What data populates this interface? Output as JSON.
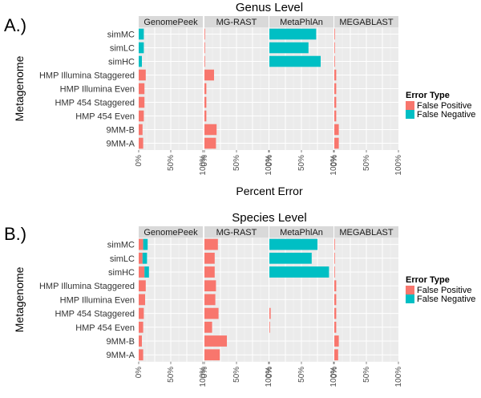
{
  "colors": {
    "false_positive": "#F8766D",
    "false_negative": "#00BFC4",
    "panel_bg": "#EBEBEB",
    "strip_bg": "#D9D9D9",
    "grid": "#FFFFFF"
  },
  "chart_data": [
    {
      "type": "bar",
      "panel_label": "A.)",
      "title": "Genus Level",
      "xlabel": "Percent Error",
      "ylabel": "Metagenome",
      "legend_title": "Error Type",
      "legend_position": "right",
      "xlim": [
        0,
        100
      ],
      "xticks": [
        "0%",
        "50%",
        "100%"
      ],
      "stacked": true,
      "facets": [
        "GenomePeek",
        "MG-RAST",
        "MetaPhlAn",
        "MEGABLAST"
      ],
      "categories": [
        "simMC",
        "simLC",
        "simHC",
        "HMP Illumina Staggered",
        "HMP Illumina Even",
        "HMP 454 Staggered",
        "HMP 454 Even",
        "9MM-B",
        "9MM-A"
      ],
      "series": [
        {
          "name": "False Positive",
          "values": {
            "GenomePeek": [
              0,
              0,
              0,
              11,
              9,
              9,
              8,
              6,
              7
            ],
            "MG-RAST": [
              1,
              1,
              1,
              15,
              3,
              3,
              3,
              19,
              18
            ],
            "MetaPhlAn": [
              0,
              0,
              0,
              0,
              0,
              0,
              0,
              0,
              0
            ],
            "MEGABLAST": [
              1,
              1,
              1,
              3,
              3,
              3,
              3,
              7,
              7
            ]
          }
        },
        {
          "name": "False Negative",
          "values": {
            "GenomePeek": [
              8,
              8,
              5,
              0,
              0,
              0,
              0,
              0,
              0
            ],
            "MG-RAST": [
              0,
              0,
              0,
              0,
              0,
              0,
              0,
              0,
              0
            ],
            "MetaPhlAn": [
              73,
              61,
              80,
              0,
              0,
              0,
              0,
              0,
              0
            ],
            "MEGABLAST": [
              0,
              0,
              0,
              0,
              0,
              0,
              0,
              0,
              0
            ]
          }
        }
      ]
    },
    {
      "type": "bar",
      "panel_label": "B.)",
      "title": "Species Level",
      "xlabel": "Percent Error",
      "ylabel": "Metagenome",
      "legend_title": "Error Type",
      "legend_position": "right",
      "xlim": [
        0,
        100
      ],
      "xticks": [
        "0%",
        "50%",
        "100%"
      ],
      "stacked": true,
      "facets": [
        "GenomePeek",
        "MG-RAST",
        "MetaPhlAn",
        "MEGABLAST"
      ],
      "categories": [
        "simMC",
        "simLC",
        "simHC",
        "HMP Illumina Staggered",
        "HMP Illumina Even",
        "HMP 454 Staggered",
        "HMP 454 Even",
        "9MM-B",
        "9MM-A"
      ],
      "series": [
        {
          "name": "False Positive",
          "values": {
            "GenomePeek": [
              7,
              6,
              9,
              11,
              10,
              8,
              7,
              5,
              7
            ],
            "MG-RAST": [
              21,
              16,
              16,
              18,
              17,
              22,
              12,
              35,
              24
            ],
            "MetaPhlAn": [
              0,
              0,
              0,
              0,
              0,
              2,
              1,
              0,
              0
            ],
            "MEGABLAST": [
              1,
              1,
              1,
              3,
              3,
              3,
              3,
              7,
              6
            ]
          }
        },
        {
          "name": "False Negative",
          "values": {
            "GenomePeek": [
              7,
              7,
              7,
              0,
              0,
              0,
              0,
              0,
              0
            ],
            "MG-RAST": [
              0,
              0,
              0,
              0,
              0,
              0,
              0,
              0,
              0
            ],
            "MetaPhlAn": [
              75,
              66,
              93,
              0,
              0,
              0,
              0,
              0,
              0
            ],
            "MEGABLAST": [
              0,
              0,
              0,
              0,
              0,
              0,
              0,
              0,
              0
            ]
          }
        }
      ]
    }
  ]
}
